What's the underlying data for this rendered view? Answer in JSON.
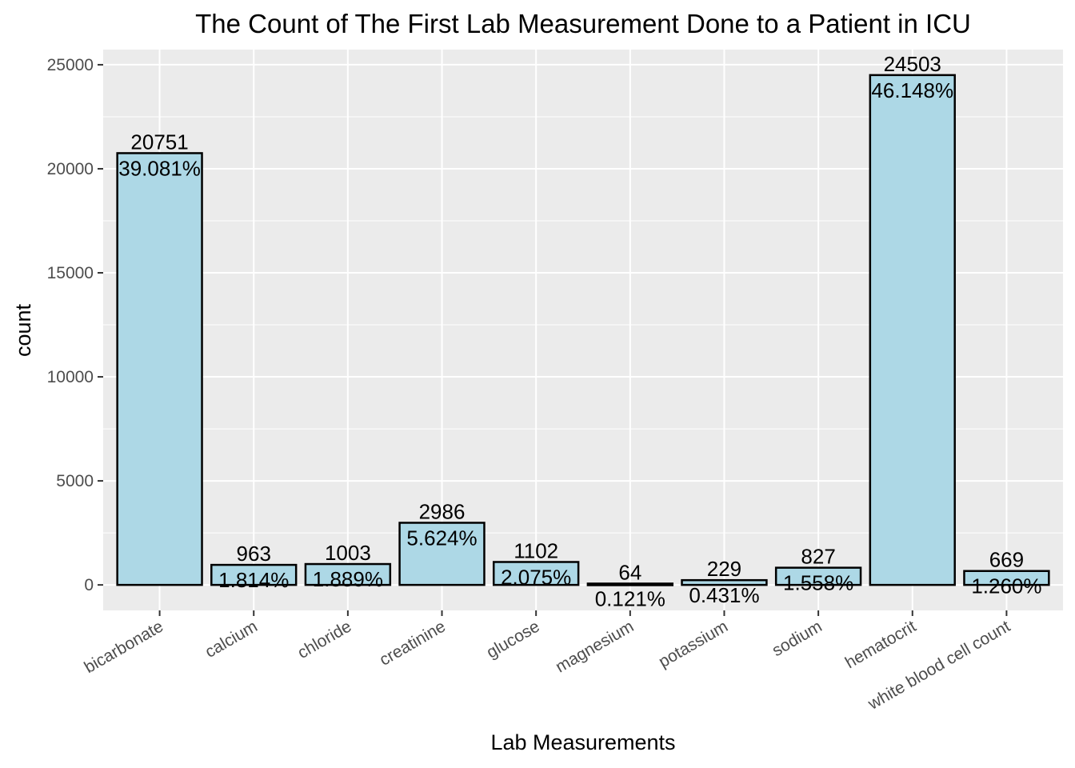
{
  "chart_data": {
    "type": "bar",
    "title": "The Count of The First Lab Measurement Done to a Patient in ICU",
    "xlabel": "Lab Measurements",
    "ylabel": "count",
    "categories": [
      "bicarbonate",
      "calcium",
      "chloride",
      "creatinine",
      "glucose",
      "magnesium",
      "potassium",
      "sodium",
      "hematocrit",
      "white blood cell count"
    ],
    "values": [
      20751,
      963,
      1003,
      2986,
      1102,
      64,
      229,
      827,
      24503,
      669
    ],
    "percent_labels": [
      "39.081%",
      "1.814%",
      "1.889%",
      "5.624%",
      "2.075%",
      "0.121%",
      "0.431%",
      "1.558%",
      "46.148%",
      "1.260%"
    ],
    "count_labels": [
      "20751",
      "963",
      "1003",
      "2986",
      "1102",
      "64",
      "229",
      "827",
      "24503",
      "669"
    ],
    "y_ticks": [
      0,
      5000,
      10000,
      15000,
      20000,
      25000
    ],
    "y_tick_labels": [
      "0",
      "5000",
      "10000",
      "15000",
      "20000",
      "25000"
    ],
    "ylim": [
      -1225,
      25728
    ],
    "grid": true,
    "bar_fill": "#add8e6",
    "bar_stroke": "#000000",
    "panel_background": "#ebebeb",
    "grid_color": "#ffffff"
  }
}
